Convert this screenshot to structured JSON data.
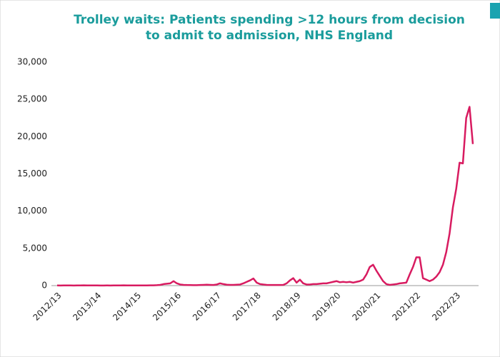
{
  "chart_data": {
    "type": "line",
    "title": [
      "Trolley waits: Patients spending >12 hours from decision",
      "to admit to admission, NHS England"
    ],
    "categories": [
      "2012/13",
      null,
      null,
      null,
      null,
      null,
      null,
      null,
      null,
      null,
      null,
      null,
      "2013/14",
      null,
      null,
      null,
      null,
      null,
      null,
      null,
      null,
      null,
      null,
      null,
      "2014/15",
      null,
      null,
      null,
      null,
      null,
      null,
      null,
      null,
      null,
      null,
      null,
      "2015/16",
      null,
      null,
      null,
      null,
      null,
      null,
      null,
      null,
      null,
      null,
      null,
      "2016/17",
      null,
      null,
      null,
      null,
      null,
      null,
      null,
      null,
      null,
      null,
      null,
      "2017/18",
      null,
      null,
      null,
      null,
      null,
      null,
      null,
      null,
      null,
      null,
      null,
      "2018/19",
      null,
      null,
      null,
      null,
      null,
      null,
      null,
      null,
      null,
      null,
      null,
      "2019/20",
      null,
      null,
      null,
      null,
      null,
      null,
      null,
      null,
      null,
      null,
      null,
      "2020/21",
      null,
      null,
      null,
      null,
      null,
      null,
      null,
      null,
      null,
      null,
      null,
      "2021/22",
      null,
      null,
      null,
      null,
      null,
      null,
      null,
      null,
      null,
      null,
      null,
      "2022/23",
      null,
      null,
      null,
      null,
      null
    ],
    "values": [
      20,
      15,
      20,
      25,
      20,
      15,
      20,
      30,
      40,
      30,
      20,
      20,
      20,
      15,
      15,
      20,
      15,
      20,
      20,
      30,
      40,
      30,
      25,
      20,
      30,
      25,
      30,
      30,
      35,
      40,
      60,
      100,
      200,
      250,
      300,
      600,
      300,
      150,
      100,
      80,
      70,
      60,
      60,
      80,
      100,
      120,
      100,
      80,
      150,
      300,
      200,
      120,
      100,
      100,
      120,
      150,
      300,
      500,
      700,
      950,
      400,
      200,
      150,
      100,
      80,
      80,
      80,
      80,
      100,
      300,
      700,
      1000,
      400,
      800,
      300,
      150,
      150,
      200,
      200,
      250,
      300,
      300,
      400,
      500,
      600,
      450,
      500,
      450,
      500,
      400,
      500,
      600,
      800,
      1500,
      2500,
      2800,
      2000,
      1300,
      600,
      200,
      100,
      150,
      200,
      300,
      350,
      400,
      1500,
      2500,
      3800,
      3800,
      1000,
      800,
      600,
      800,
      1200,
      1800,
      2800,
      4500,
      7000,
      10500,
      13000,
      16500,
      16400,
      22500,
      24000,
      19000
    ],
    "color": "#d81b60",
    "ylim": [
      0,
      30000
    ],
    "yticks": [
      0,
      {
        "value": 5000,
        "label": "5,000"
      },
      {
        "value": 10000,
        "label": "10,000"
      },
      {
        "value": 15000,
        "label": "15,000"
      },
      {
        "value": 20000,
        "label": "20,000"
      },
      {
        "value": 25000,
        "label": "25,000"
      },
      {
        "value": 30000,
        "label": "30,000"
      }
    ],
    "grid": false
  }
}
